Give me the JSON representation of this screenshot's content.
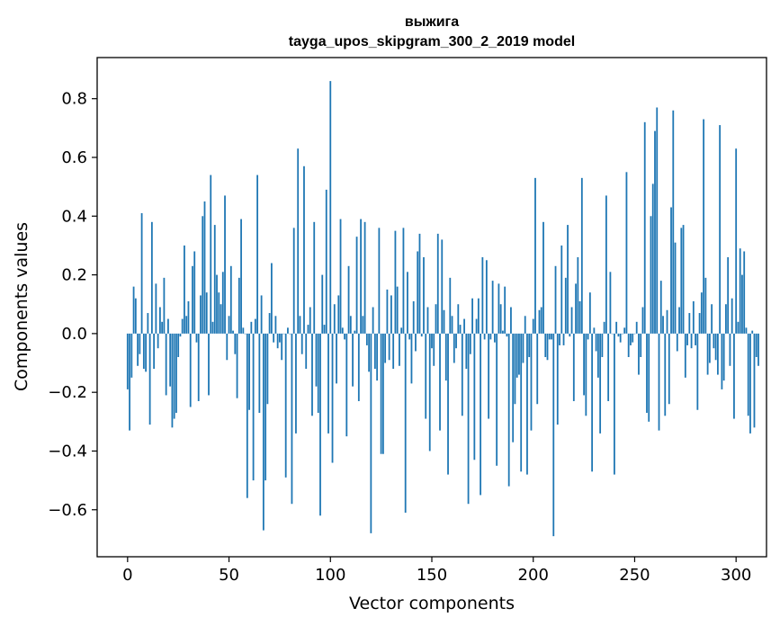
{
  "chart_data": {
    "type": "bar",
    "title_line1": "выжига",
    "title_line2": "tayga_upos_skipgram_300_2_2019 model",
    "xlabel": "Vector components",
    "ylabel": "Components values",
    "xlim": [
      -15,
      315
    ],
    "ylim": [
      -0.76,
      0.94
    ],
    "xticks": [
      0,
      50,
      100,
      150,
      200,
      250,
      300
    ],
    "xtick_labels": [
      "0",
      "50",
      "100",
      "150",
      "200",
      "250",
      "300"
    ],
    "yticks": [
      -0.6,
      -0.4,
      -0.2,
      0.0,
      0.2,
      0.4,
      0.6,
      0.8
    ],
    "ytick_labels": [
      "−0.6",
      "−0.4",
      "−0.2",
      "0.0",
      "0.2",
      "0.4",
      "0.6",
      "0.8"
    ],
    "bar_color": "#1f77b4",
    "grid": false,
    "values": [
      -0.19,
      -0.33,
      -0.15,
      0.16,
      0.12,
      -0.11,
      -0.07,
      0.41,
      -0.12,
      -0.13,
      0.07,
      -0.31,
      0.38,
      -0.12,
      0.17,
      -0.05,
      0.09,
      0.04,
      0.19,
      -0.21,
      0.05,
      -0.18,
      -0.32,
      -0.29,
      -0.27,
      -0.08,
      -0.01,
      0.05,
      0.3,
      0.06,
      0.11,
      -0.25,
      0.23,
      0.28,
      -0.03,
      -0.23,
      0.13,
      0.4,
      0.45,
      0.14,
      -0.21,
      0.54,
      0.04,
      0.37,
      0.2,
      0.14,
      0.1,
      0.21,
      0.47,
      -0.09,
      0.06,
      0.23,
      0.01,
      -0.07,
      -0.22,
      0.19,
      0.39,
      0.02,
      0.0,
      -0.56,
      -0.26,
      0.04,
      -0.5,
      0.05,
      0.54,
      -0.27,
      0.13,
      -0.67,
      -0.5,
      -0.24,
      0.07,
      0.24,
      -0.03,
      0.06,
      -0.05,
      -0.03,
      -0.09,
      0.0,
      -0.49,
      0.02,
      0.0,
      -0.58,
      0.36,
      -0.34,
      0.63,
      0.06,
      -0.07,
      0.57,
      -0.12,
      0.03,
      0.09,
      -0.28,
      0.38,
      -0.18,
      -0.27,
      -0.62,
      0.2,
      0.03,
      0.49,
      -0.34,
      0.86,
      -0.44,
      0.1,
      -0.17,
      0.13,
      0.39,
      0.02,
      -0.02,
      -0.35,
      0.23,
      0.06,
      -0.18,
      0.01,
      0.33,
      -0.23,
      0.39,
      0.06,
      0.38,
      -0.04,
      -0.13,
      -0.68,
      0.09,
      -0.12,
      -0.16,
      0.36,
      -0.41,
      -0.41,
      -0.1,
      0.15,
      -0.09,
      0.13,
      -0.12,
      0.35,
      0.16,
      -0.11,
      0.02,
      0.36,
      -0.61,
      0.21,
      -0.02,
      -0.17,
      0.11,
      -0.06,
      0.28,
      0.34,
      -0.01,
      0.26,
      -0.29,
      0.09,
      -0.4,
      -0.05,
      -0.11,
      0.1,
      0.34,
      -0.33,
      0.32,
      0.08,
      -0.16,
      -0.48,
      0.19,
      0.06,
      -0.1,
      -0.05,
      0.1,
      0.03,
      -0.28,
      0.05,
      -0.12,
      -0.58,
      -0.07,
      0.12,
      -0.43,
      0.05,
      0.12,
      -0.55,
      0.26,
      -0.02,
      0.25,
      -0.29,
      -0.02,
      0.18,
      -0.03,
      -0.45,
      0.17,
      0.1,
      0.01,
      0.16,
      -0.01,
      -0.52,
      0.09,
      -0.37,
      -0.24,
      -0.15,
      -0.14,
      -0.47,
      -0.1,
      0.06,
      -0.48,
      -0.08,
      -0.33,
      0.05,
      0.53,
      -0.24,
      0.08,
      0.09,
      0.38,
      -0.08,
      -0.09,
      -0.02,
      -0.02,
      -0.69,
      0.23,
      -0.31,
      -0.04,
      0.3,
      -0.04,
      0.19,
      0.37,
      -0.01,
      0.09,
      -0.23,
      0.17,
      0.26,
      0.11,
      0.53,
      -0.21,
      -0.28,
      -0.02,
      0.14,
      -0.47,
      0.02,
      -0.06,
      -0.15,
      -0.34,
      -0.08,
      0.04,
      0.47,
      -0.23,
      0.21,
      0.0,
      -0.48,
      0.04,
      -0.01,
      -0.03,
      0.0,
      0.02,
      0.55,
      -0.08,
      -0.04,
      -0.03,
      0.0,
      0.04,
      -0.14,
      -0.08,
      0.09,
      0.72,
      -0.27,
      -0.3,
      0.4,
      0.51,
      0.69,
      0.77,
      -0.33,
      0.18,
      0.06,
      -0.28,
      0.08,
      -0.24,
      0.43,
      0.76,
      0.31,
      -0.06,
      0.09,
      0.36,
      0.37,
      -0.15,
      -0.04,
      0.07,
      -0.05,
      0.11,
      -0.04,
      -0.26,
      0.07,
      0.14,
      0.73,
      0.19,
      -0.14,
      -0.1,
      0.1,
      -0.05,
      -0.09,
      -0.14,
      0.71,
      -0.19,
      -0.16,
      0.1,
      0.26,
      -0.11,
      0.12,
      -0.29,
      0.63,
      0.04,
      0.29,
      0.2,
      0.28,
      0.02,
      -0.28,
      -0.34,
      0.01,
      -0.32,
      -0.08,
      -0.11
    ]
  }
}
